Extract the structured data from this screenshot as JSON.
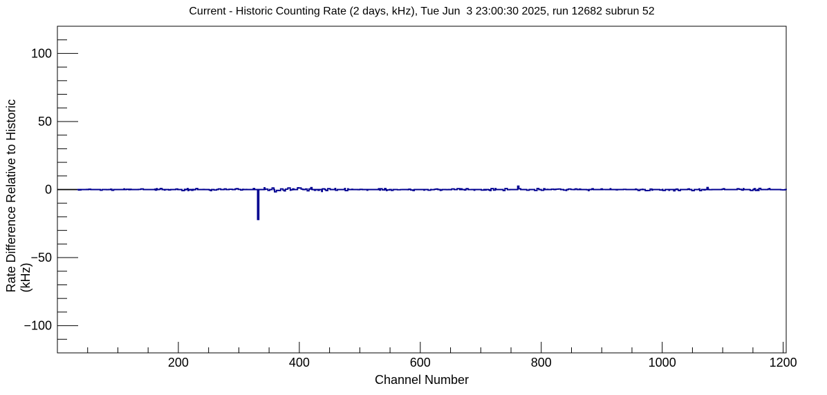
{
  "chart_data": {
    "type": "line",
    "style": "histogram-step",
    "title": "Current - Historic Counting Rate (2 days, kHz), Tue Jun  3 23:00:30 2025, run 12682 subrun 52",
    "xlabel": "Channel Number",
    "ylabel": "Rate Difference Relative to Historic (kHz)",
    "xlim": [
      0,
      1205
    ],
    "ylim": [
      -120,
      120
    ],
    "grid": false,
    "legend": "none",
    "frame_color": "#000000",
    "background_color": "#ffffff",
    "x_major_ticks": [
      {
        "value": 200,
        "label": "200"
      },
      {
        "value": 400,
        "label": "400"
      },
      {
        "value": 600,
        "label": "600"
      },
      {
        "value": 800,
        "label": "800"
      },
      {
        "value": 1000,
        "label": "1000"
      },
      {
        "value": 1200,
        "label": "1200"
      }
    ],
    "x_minor_step": 50,
    "y_major_ticks": [
      {
        "value": -100,
        "label": "−100"
      },
      {
        "value": -50,
        "label": "−50"
      },
      {
        "value": 0,
        "label": "0"
      },
      {
        "value": 50,
        "label": "50"
      },
      {
        "value": 100,
        "label": "100"
      }
    ],
    "y_minor_step": 10,
    "series": [
      {
        "name": "current-minus-historic-rate",
        "color": "#000090",
        "baseline_khz": 0,
        "noise_amplitude_khz": 0.8,
        "zero_fraction": 0.55,
        "random_seed": 20250603,
        "leading_flat_segment": {
          "from_channel": 0,
          "to_channel": 33,
          "value_khz": 0,
          "color": "#000000"
        },
        "elevated_noise_region": {
          "from_channel": 335,
          "to_channel": 425,
          "amplitude_khz": 1.5,
          "zero_fraction": 0.4
        },
        "anomalies": [
          {
            "channel": 331,
            "width_channels": 2,
            "value_khz": -22,
            "note": "large negative spike"
          },
          {
            "channel": 761,
            "width_channels": 2,
            "value_khz": 2.5,
            "note": "small positive blip"
          },
          {
            "channel": 1074,
            "width_channels": 2,
            "value_khz": 1.5,
            "note": "small positive blip"
          }
        ]
      }
    ]
  }
}
